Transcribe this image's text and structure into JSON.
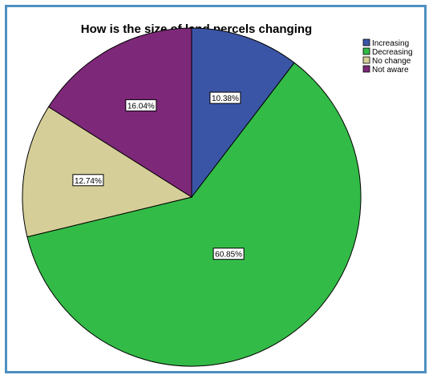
{
  "chart_data": {
    "type": "pie",
    "title": "How is the size of land percels changing",
    "categories": [
      "Increasing",
      "Decreasing",
      "No change",
      "Not aware"
    ],
    "values": [
      10.38,
      60.85,
      12.74,
      16.04
    ],
    "labels": [
      "10.38%",
      "60.85%",
      "12.74%",
      "16.04%"
    ],
    "colors": [
      "#3b55a6",
      "#33bb47",
      "#d6ce98",
      "#7d2878"
    ],
    "start_angle": "12 o'clock",
    "direction": "clockwise",
    "legend_position": "top-right"
  }
}
